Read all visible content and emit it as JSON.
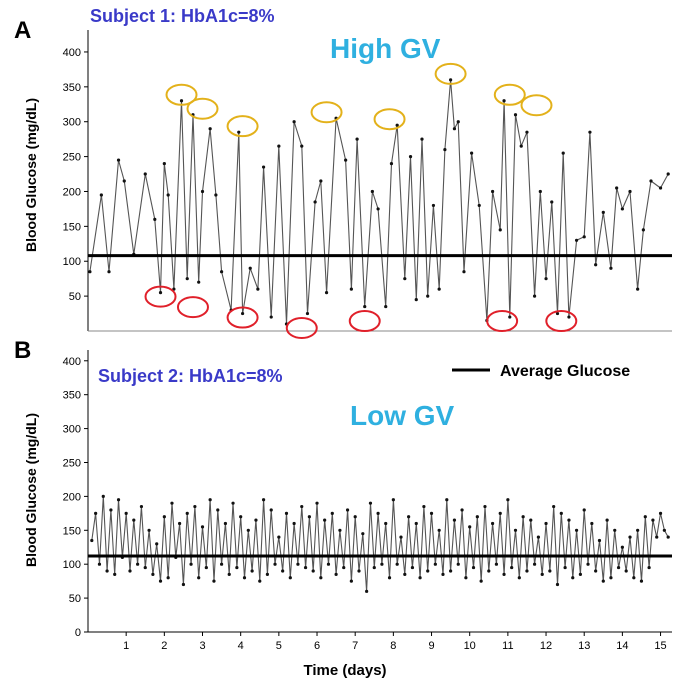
{
  "colors": {
    "series": "#555555",
    "average": "#000000",
    "high_marker": "#e3b11a",
    "low_marker": "#e0202a",
    "subject_text": "#3a3ac8",
    "gv_text": "#2fb0e0"
  },
  "xlabel": "Time (days)",
  "legend": {
    "label": "Average Glucose",
    "placement": "top-right of panel B"
  },
  "chart_data": [
    {
      "panel": "A",
      "type": "line",
      "subject_label": "Subject 1: HbA1c=8%",
      "gv_label": "High GV",
      "ylabel": "Blood Glucose (mg/dL)",
      "yticks": [
        50,
        100,
        150,
        200,
        250,
        300,
        350,
        400
      ],
      "ytick_labels": [
        "50",
        "100",
        "150",
        "200",
        "250",
        "300",
        "350",
        "400"
      ],
      "ylim": [
        0,
        420
      ],
      "xlim": [
        0,
        15.3
      ],
      "average": 108,
      "series": [
        {
          "name": "Average Glucose",
          "x": [
            0.05,
            0.35,
            0.55,
            0.8,
            0.95,
            1.2,
            1.5,
            1.75,
            1.9,
            2.0,
            2.1,
            2.25,
            2.45,
            2.6,
            2.75,
            2.9,
            3.0,
            3.2,
            3.35,
            3.5,
            3.75,
            3.95,
            4.05,
            4.25,
            4.45,
            4.6,
            4.8,
            5.0,
            5.2,
            5.4,
            5.6,
            5.75,
            5.95,
            6.1,
            6.25,
            6.5,
            6.75,
            6.9,
            7.05,
            7.25,
            7.45,
            7.6,
            7.8,
            7.95,
            8.1,
            8.3,
            8.45,
            8.6,
            8.75,
            8.9,
            9.05,
            9.2,
            9.35,
            9.5,
            9.6,
            9.7,
            9.85,
            10.05,
            10.25,
            10.45,
            10.6,
            10.8,
            10.9,
            11.05,
            11.2,
            11.35,
            11.5,
            11.7,
            11.85,
            12.0,
            12.15,
            12.3,
            12.45,
            12.6,
            12.8,
            13.0,
            13.15,
            13.3,
            13.5,
            13.7,
            13.85,
            14.0,
            14.2,
            14.4,
            14.55,
            14.75,
            15.0,
            15.2
          ],
          "y": [
            85,
            195,
            85,
            245,
            215,
            110,
            225,
            160,
            55,
            240,
            195,
            60,
            330,
            75,
            310,
            70,
            200,
            290,
            195,
            85,
            30,
            285,
            25,
            90,
            60,
            235,
            20,
            265,
            10,
            300,
            265,
            25,
            185,
            215,
            55,
            305,
            245,
            60,
            275,
            35,
            200,
            175,
            35,
            240,
            295,
            75,
            250,
            45,
            275,
            50,
            180,
            60,
            260,
            360,
            290,
            300,
            85,
            255,
            180,
            15,
            200,
            145,
            330,
            20,
            310,
            265,
            285,
            50,
            200,
            75,
            185,
            25,
            255,
            20,
            130,
            135,
            285,
            95,
            170,
            90,
            205,
            175,
            200,
            60,
            145,
            215,
            205,
            225
          ]
        }
      ],
      "high_peaks": [
        [
          2.45,
          330
        ],
        [
          3.0,
          310
        ],
        [
          4.05,
          285
        ],
        [
          6.25,
          305
        ],
        [
          7.9,
          295
        ],
        [
          9.5,
          360
        ],
        [
          11.05,
          330
        ],
        [
          11.75,
          315
        ]
      ],
      "low_valleys": [
        [
          1.9,
          55
        ],
        [
          2.75,
          40
        ],
        [
          4.05,
          25
        ],
        [
          5.6,
          10
        ],
        [
          7.25,
          20
        ],
        [
          10.85,
          20
        ],
        [
          12.4,
          20
        ]
      ]
    },
    {
      "panel": "B",
      "type": "line",
      "subject_label": "Subject 2: HbA1c=8%",
      "gv_label": "Low GV",
      "ylabel": "Blood Glucose (mg/dL)",
      "yticks": [
        0,
        50,
        100,
        150,
        200,
        250,
        300,
        350,
        400
      ],
      "ytick_labels": [
        "0",
        "50",
        "100",
        "150",
        "200",
        "250",
        "300",
        "350",
        "400"
      ],
      "ylim": [
        0,
        410
      ],
      "xlim": [
        0,
        15.3
      ],
      "xticks": [
        1,
        2,
        3,
        4,
        5,
        6,
        7,
        8,
        9,
        10,
        11,
        12,
        13,
        14,
        15
      ],
      "xtick_labels": [
        "1",
        "2",
        "3",
        "4",
        "5",
        "6",
        "7",
        "8",
        "9",
        "10",
        "11",
        "12",
        "13",
        "14",
        "15"
      ],
      "average": 112,
      "series": [
        {
          "name": "Average Glucose",
          "x": [
            0.1,
            0.2,
            0.3,
            0.4,
            0.5,
            0.6,
            0.7,
            0.8,
            0.9,
            1.0,
            1.1,
            1.2,
            1.3,
            1.4,
            1.5,
            1.6,
            1.7,
            1.8,
            1.9,
            2.0,
            2.1,
            2.2,
            2.3,
            2.4,
            2.5,
            2.6,
            2.7,
            2.8,
            2.9,
            3.0,
            3.1,
            3.2,
            3.3,
            3.4,
            3.5,
            3.6,
            3.7,
            3.8,
            3.9,
            4.0,
            4.1,
            4.2,
            4.3,
            4.4,
            4.5,
            4.6,
            4.7,
            4.8,
            4.9,
            5.0,
            5.1,
            5.2,
            5.3,
            5.4,
            5.5,
            5.6,
            5.7,
            5.8,
            5.9,
            6.0,
            6.1,
            6.2,
            6.3,
            6.4,
            6.5,
            6.6,
            6.7,
            6.8,
            6.9,
            7.0,
            7.1,
            7.2,
            7.3,
            7.4,
            7.5,
            7.6,
            7.7,
            7.8,
            7.9,
            8.0,
            8.1,
            8.2,
            8.3,
            8.4,
            8.5,
            8.6,
            8.7,
            8.8,
            8.9,
            9.0,
            9.1,
            9.2,
            9.3,
            9.4,
            9.5,
            9.6,
            9.7,
            9.8,
            9.9,
            10.0,
            10.1,
            10.2,
            10.3,
            10.4,
            10.5,
            10.6,
            10.7,
            10.8,
            10.9,
            11.0,
            11.1,
            11.2,
            11.3,
            11.4,
            11.5,
            11.6,
            11.7,
            11.8,
            11.9,
            12.0,
            12.1,
            12.2,
            12.3,
            12.4,
            12.5,
            12.6,
            12.7,
            12.8,
            12.9,
            13.0,
            13.1,
            13.2,
            13.3,
            13.4,
            13.5,
            13.6,
            13.7,
            13.8,
            13.9,
            14.0,
            14.1,
            14.2,
            14.3,
            14.4,
            14.5,
            14.6,
            14.7,
            14.8,
            14.9,
            15.0,
            15.1,
            15.2
          ],
          "y": [
            135,
            175,
            100,
            200,
            90,
            180,
            85,
            195,
            110,
            175,
            90,
            165,
            100,
            185,
            95,
            150,
            85,
            130,
            75,
            170,
            80,
            190,
            110,
            160,
            70,
            175,
            100,
            185,
            80,
            155,
            95,
            195,
            75,
            180,
            100,
            160,
            85,
            190,
            95,
            170,
            80,
            150,
            90,
            165,
            75,
            195,
            85,
            180,
            100,
            140,
            90,
            175,
            80,
            160,
            100,
            185,
            95,
            170,
            90,
            190,
            80,
            165,
            100,
            175,
            85,
            150,
            95,
            180,
            75,
            170,
            90,
            145,
            60,
            190,
            95,
            175,
            100,
            160,
            80,
            195,
            100,
            140,
            85,
            170,
            95,
            160,
            80,
            185,
            90,
            175,
            100,
            150,
            85,
            195,
            90,
            165,
            100,
            180,
            80,
            155,
            95,
            170,
            75,
            185,
            90,
            160,
            100,
            175,
            85,
            195,
            95,
            150,
            80,
            170,
            90,
            165,
            100,
            140,
            85,
            160,
            90,
            185,
            70,
            175,
            95,
            165,
            80,
            150,
            85,
            180,
            100,
            160,
            90,
            135,
            75,
            165,
            80,
            150,
            95,
            125,
            90,
            140,
            80,
            150,
            75,
            170,
            95,
            165,
            140,
            175,
            150,
            140
          ]
        }
      ]
    }
  ]
}
